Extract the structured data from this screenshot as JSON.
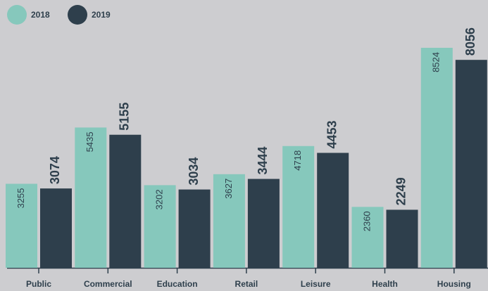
{
  "chart_data": {
    "type": "bar",
    "categories": [
      "Public",
      "Commercial",
      "Education",
      "Retail",
      "Leisure",
      "Health",
      "Housing"
    ],
    "series": [
      {
        "name": "2018",
        "color": "#86c8bc",
        "values": [
          3255,
          5435,
          3202,
          3627,
          4718,
          2360,
          8524
        ]
      },
      {
        "name": "2019",
        "color": "#2e3f4c",
        "values": [
          3074,
          5155,
          3034,
          3444,
          4453,
          2249,
          8056
        ]
      }
    ],
    "legend": "top-left"
  }
}
